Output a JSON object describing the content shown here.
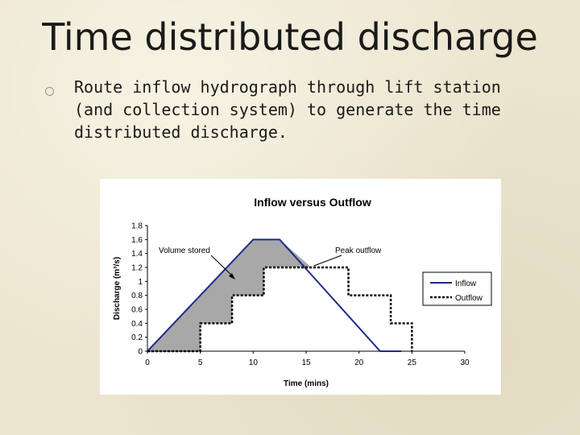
{
  "slide": {
    "title": "Time distributed discharge",
    "bullet": "Route inflow hydrograph through lift station (and collection system) to generate the time distributed discharge."
  },
  "chart_data": {
    "type": "line",
    "title": "Inflow versus Outflow",
    "xlabel": "Time (mins)",
    "ylabel": "Discharge (m³/s)",
    "xlim": [
      0,
      30
    ],
    "ylim": [
      0,
      1.8
    ],
    "xticks": [
      0,
      5,
      10,
      15,
      20,
      25,
      30
    ],
    "yticks": [
      0,
      0.2,
      0.4,
      0.6,
      0.8,
      1,
      1.2,
      1.4,
      1.6,
      1.8
    ],
    "grid": false,
    "legend_position": "right",
    "series": [
      {
        "name": "Inflow",
        "color": "#1f2a8c",
        "style": "solid",
        "x": [
          0,
          10,
          12.5,
          22,
          24
        ],
        "y": [
          0,
          1.6,
          1.6,
          0,
          0
        ]
      },
      {
        "name": "Outflow",
        "color": "#000000",
        "style": "dotted",
        "x": [
          0,
          5,
          5,
          8,
          8,
          11,
          11,
          15.5,
          15.5,
          19,
          19,
          23,
          23,
          25,
          25
        ],
        "y": [
          0,
          0,
          0.4,
          0.4,
          0.8,
          0.8,
          1.2,
          1.2,
          1.2,
          1.2,
          0.8,
          0.8,
          0.4,
          0.4,
          0
        ]
      }
    ],
    "annotations": [
      {
        "text": "Volume stored"
      },
      {
        "text": "Peak outflow"
      }
    ],
    "fill_color": "#a8a8a8"
  }
}
